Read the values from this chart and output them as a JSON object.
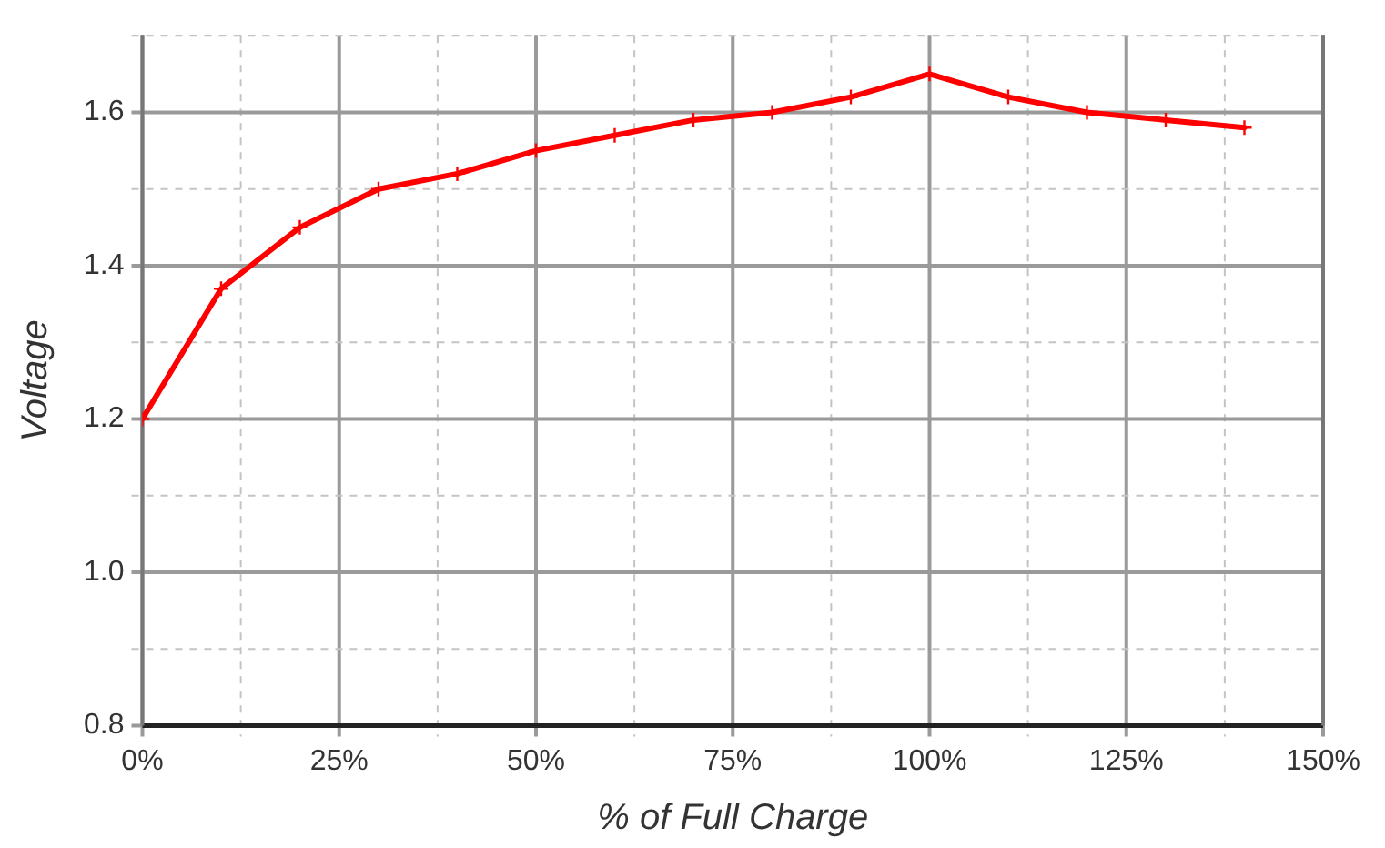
{
  "chart_data": {
    "type": "line",
    "xlabel": "% of Full Charge",
    "ylabel": "Voltage",
    "x": [
      0,
      10,
      20,
      30,
      40,
      50,
      60,
      70,
      80,
      90,
      100,
      110,
      120,
      130,
      140
    ],
    "series": [
      {
        "color": "#ff0000",
        "values": [
          1.2,
          1.37,
          1.45,
          1.5,
          1.52,
          1.55,
          1.57,
          1.59,
          1.6,
          1.62,
          1.65,
          1.62,
          1.6,
          1.59,
          1.58
        ]
      }
    ],
    "xlim": [
      0,
      150
    ],
    "xticks": [
      {
        "value": 0,
        "label": "0%"
      },
      {
        "value": 12.5,
        "label": null
      },
      {
        "value": 25,
        "label": "25%"
      },
      {
        "value": 37.5,
        "label": null
      },
      {
        "value": 50,
        "label": "50%"
      },
      {
        "value": 62.5,
        "label": null
      },
      {
        "value": 75,
        "label": "75%"
      },
      {
        "value": 87.5,
        "label": null
      },
      {
        "value": 100,
        "label": "100%"
      },
      {
        "value": 112.5,
        "label": null
      },
      {
        "value": 125,
        "label": "125%"
      },
      {
        "value": 137.5,
        "label": null
      },
      {
        "value": 150,
        "label": "150%"
      }
    ],
    "ylim": [
      0.8,
      1.7
    ],
    "yticks": [
      0.8,
      {
        "value": 0.9,
        "label": null
      },
      {
        "value": 1,
        "label": "1.0"
      },
      {
        "value": 1.1,
        "label": null
      },
      1.2,
      {
        "value": 1.3,
        "label": null
      },
      1.4,
      {
        "value": 1.5,
        "label": null
      },
      1.6,
      {
        "value": 1.7,
        "label": null
      }
    ],
    "grid": true,
    "legend": false,
    "marker": "cross",
    "line_style": "solid"
  }
}
